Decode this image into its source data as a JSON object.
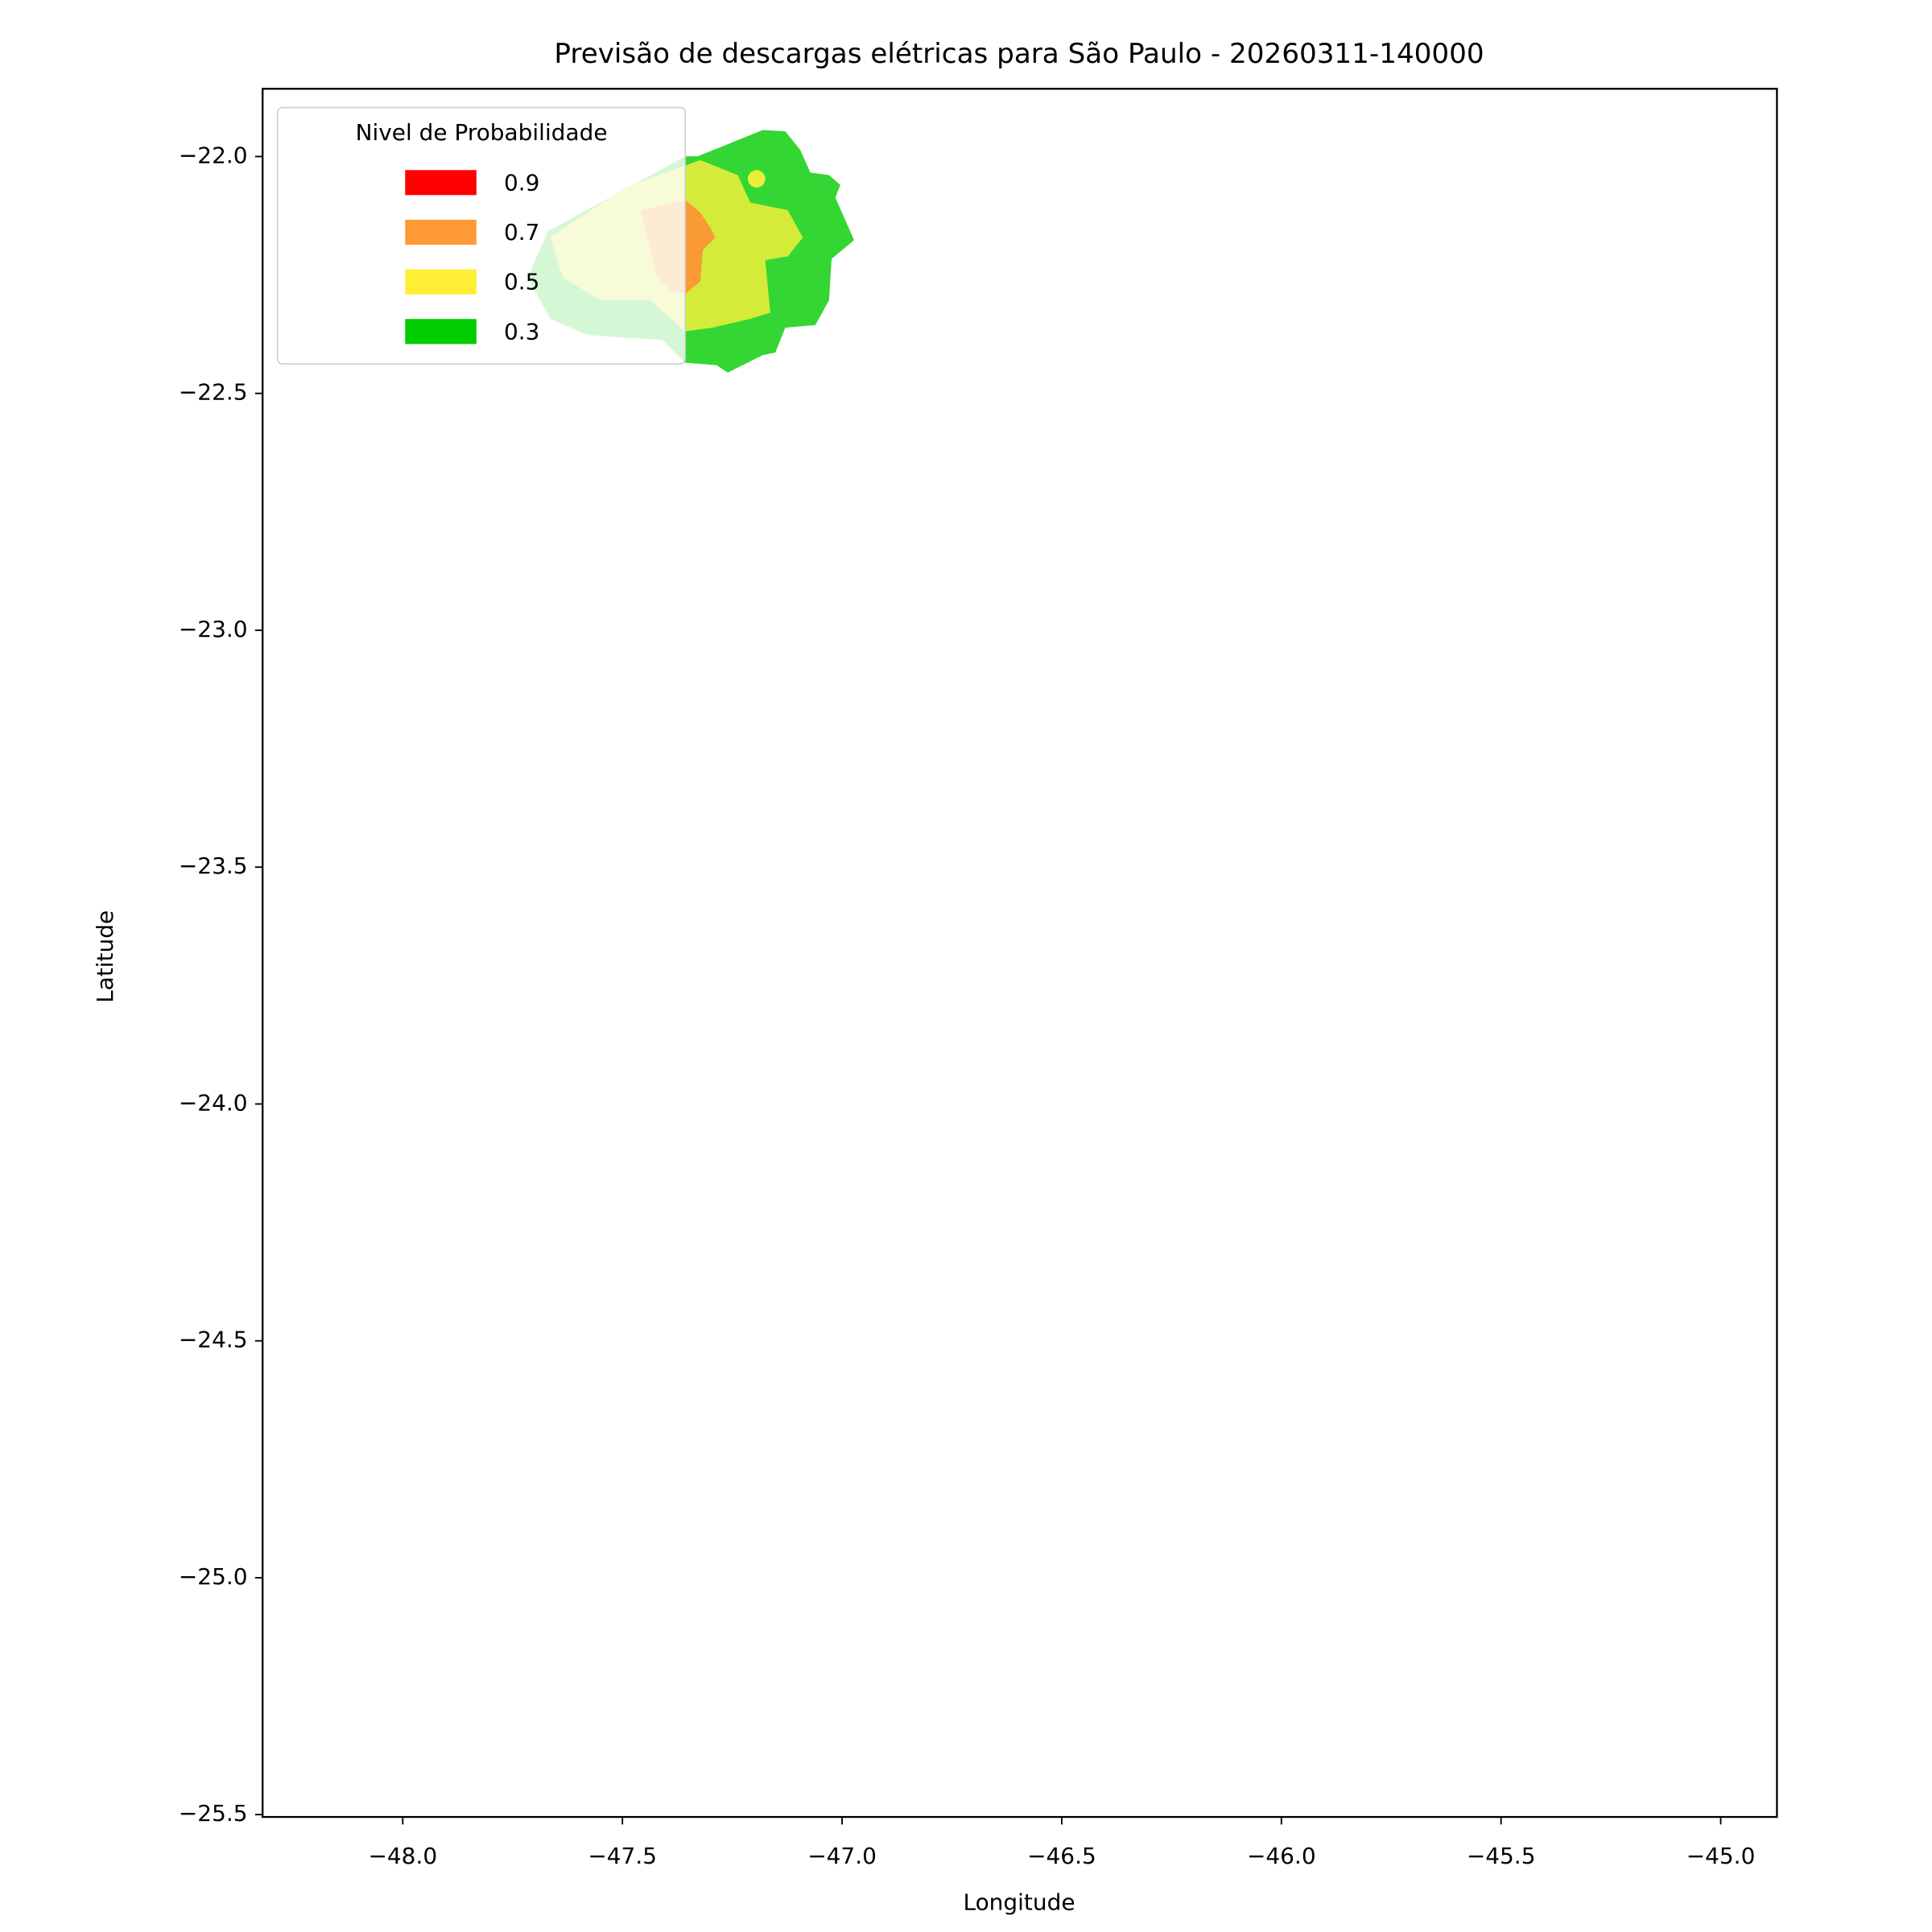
{
  "chart_data": {
    "type": "contour",
    "title": "Previsão de descargas elétricas para São Paulo - 20260311-140000",
    "xlabel": "Longitude",
    "ylabel": "Latitude",
    "xlim": [
      -48.319,
      -44.872
    ],
    "ylim": [
      -25.505,
      -21.857
    ],
    "xticks": [
      {
        "value": -48.0,
        "label": "−48.0"
      },
      {
        "value": -47.5,
        "label": "−47.5"
      },
      {
        "value": -47.0,
        "label": "−47.0"
      },
      {
        "value": -46.5,
        "label": "−46.5"
      },
      {
        "value": -46.0,
        "label": "−46.0"
      },
      {
        "value": -45.5,
        "label": "−45.5"
      },
      {
        "value": -45.0,
        "label": "−45.0"
      }
    ],
    "yticks": [
      {
        "value": -22.0,
        "label": "−22.0"
      },
      {
        "value": -22.5,
        "label": "−22.5"
      },
      {
        "value": -23.0,
        "label": "−23.0"
      },
      {
        "value": -23.5,
        "label": "−23.5"
      },
      {
        "value": -24.0,
        "label": "−24.0"
      },
      {
        "value": -24.5,
        "label": "−24.5"
      },
      {
        "value": -25.0,
        "label": "−25.0"
      },
      {
        "value": -25.5,
        "label": "−25.5"
      }
    ],
    "legend": {
      "title": "Nivel de Probabilidade",
      "position": "upper left"
    },
    "series": [
      {
        "name": "0.9",
        "color": "#ff0000"
      },
      {
        "name": "0.7",
        "color": "#ff9933"
      },
      {
        "name": "0.5",
        "color": "#ffee33"
      },
      {
        "name": "0.3",
        "color": "#00cc00"
      }
    ]
  }
}
